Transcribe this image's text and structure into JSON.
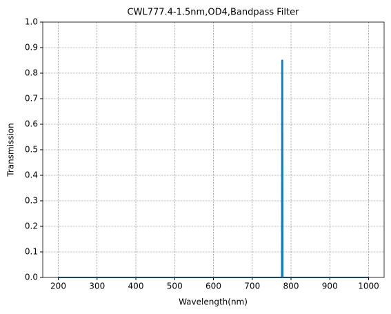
{
  "chart_data": {
    "type": "line",
    "title": "CWL777.4-1.5nm,OD4,Bandpass Filter",
    "x_label": "Wavelength(nm)",
    "y_label": "Transmission",
    "series": [
      {
        "name": "Transmission",
        "color": "#1f77b4",
        "x": [
          200,
          776,
          776.7,
          777.4,
          778.1,
          778.8,
          1000
        ],
        "values": [
          0,
          0,
          0.85,
          0.85,
          0.85,
          0,
          0
        ]
      }
    ],
    "xlim": [
      160,
      1040
    ],
    "xticks": [
      200,
      300,
      400,
      500,
      600,
      700,
      800,
      900,
      1000
    ],
    "ylim": [
      0,
      1
    ],
    "yticks": [
      {
        "value": 0,
        "label": "0.0"
      },
      0.1,
      0.2,
      0.3,
      0.4,
      0.5,
      0.6,
      0.7,
      0.8,
      0.9,
      {
        "value": 1,
        "label": "1.0"
      }
    ],
    "grid": true
  }
}
